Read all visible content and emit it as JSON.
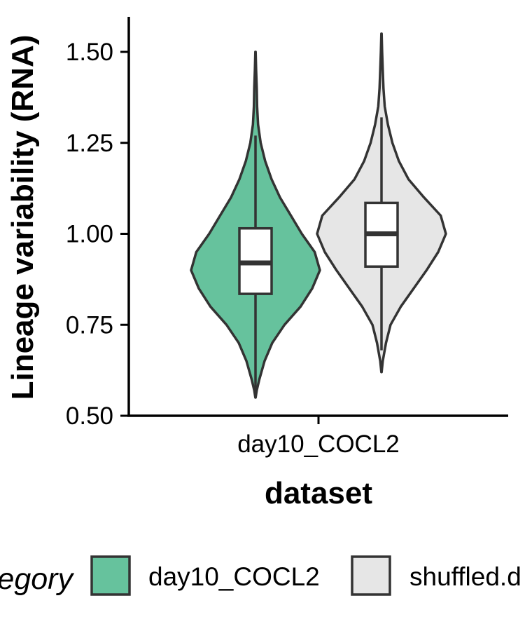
{
  "chart_data": {
    "type": "violin",
    "xlabel": "dataset",
    "ylabel": "Lineage variability (RNA)",
    "ylim": [
      0.5,
      1.6
    ],
    "y_ticks": [
      "0.50",
      "0.75",
      "1.00",
      "1.25",
      "1.50"
    ],
    "categories": [
      "day10_COCL2"
    ],
    "grid": false,
    "legend": {
      "position": "bottom",
      "title": "egory",
      "entries": [
        "day10_COCL2",
        "shuffled.d"
      ]
    },
    "series": [
      {
        "name": "day10_COCL2",
        "color": "#66c29d",
        "min": 0.55,
        "max": 1.5,
        "box": {
          "whisker_low": 0.55,
          "q1": 0.835,
          "median": 0.92,
          "q3": 1.015,
          "whisker_high": 1.27
        },
        "density": [
          [
            0.55,
            0.002
          ],
          [
            0.57,
            0.02
          ],
          [
            0.6,
            0.06
          ],
          [
            0.65,
            0.14
          ],
          [
            0.7,
            0.26
          ],
          [
            0.75,
            0.45
          ],
          [
            0.8,
            0.7
          ],
          [
            0.85,
            0.88
          ],
          [
            0.9,
            1.0
          ],
          [
            0.95,
            0.92
          ],
          [
            1.0,
            0.72
          ],
          [
            1.05,
            0.55
          ],
          [
            1.1,
            0.38
          ],
          [
            1.15,
            0.25
          ],
          [
            1.2,
            0.15
          ],
          [
            1.25,
            0.08
          ],
          [
            1.3,
            0.04
          ],
          [
            1.35,
            0.025
          ],
          [
            1.4,
            0.02
          ],
          [
            1.45,
            0.01
          ],
          [
            1.5,
            0.002
          ]
        ]
      },
      {
        "name": "shuffled.d",
        "color": "#e6e6e6",
        "min": 0.62,
        "max": 1.55,
        "box": {
          "whisker_low": 0.68,
          "q1": 0.91,
          "median": 1.0,
          "q3": 1.085,
          "whisker_high": 1.32
        },
        "density": [
          [
            0.62,
            0.002
          ],
          [
            0.65,
            0.02
          ],
          [
            0.7,
            0.07
          ],
          [
            0.75,
            0.14
          ],
          [
            0.8,
            0.3
          ],
          [
            0.85,
            0.5
          ],
          [
            0.9,
            0.7
          ],
          [
            0.95,
            0.88
          ],
          [
            1.0,
            1.0
          ],
          [
            1.05,
            0.92
          ],
          [
            1.1,
            0.66
          ],
          [
            1.15,
            0.42
          ],
          [
            1.2,
            0.27
          ],
          [
            1.25,
            0.17
          ],
          [
            1.3,
            0.1
          ],
          [
            1.35,
            0.05
          ],
          [
            1.4,
            0.03
          ],
          [
            1.45,
            0.02
          ],
          [
            1.5,
            0.01
          ],
          [
            1.55,
            0.002
          ]
        ]
      }
    ]
  }
}
